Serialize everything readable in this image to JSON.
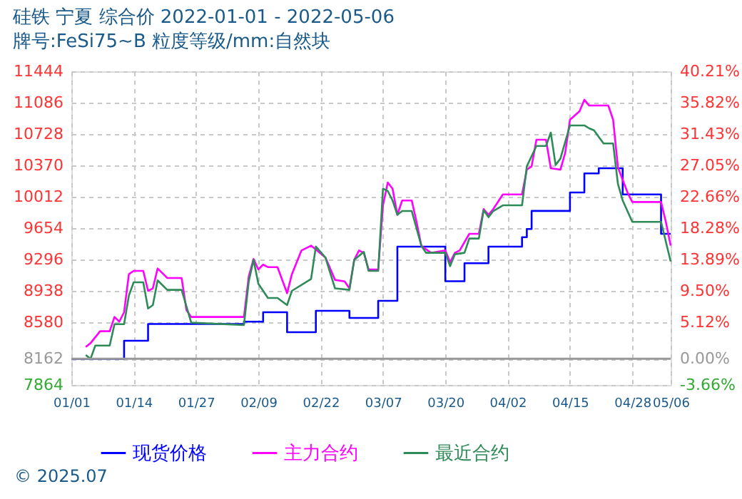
{
  "chart_data": {
    "type": "line",
    "title": "硅铁 宁夏 综合价 2022-01-01 - 2022-05-06",
    "subtitle": "牌号:FeSi75~B 粒度等级/mm:自然块",
    "xlim": [
      "2022-01-01",
      "2022-05-06"
    ],
    "xticks": [
      {
        "value": "2022-01-01",
        "label": "01/01"
      },
      {
        "value": "2022-01-14",
        "label": "01/14"
      },
      {
        "value": "2022-01-27",
        "label": "01/27"
      },
      {
        "value": "2022-02-09",
        "label": "02/09"
      },
      {
        "value": "2022-02-22",
        "label": "02/22"
      },
      {
        "value": "2022-03-07",
        "label": "03/07"
      },
      {
        "value": "2022-03-20",
        "label": "03/20"
      },
      {
        "value": "2022-04-02",
        "label": "04/02"
      },
      {
        "value": "2022-04-15",
        "label": "04/15"
      },
      {
        "value": "2022-04-28",
        "label": "04/28"
      },
      {
        "value": "2022-05-06",
        "label": "05/06"
      }
    ],
    "ylim": [
      7864,
      11444
    ],
    "yticks": [
      7864,
      8162,
      8580,
      8938,
      9296,
      9654,
      10012,
      10370,
      10728,
      11086,
      11444
    ],
    "y2lim": [
      -3.66,
      40.21
    ],
    "y2ticks": [
      {
        "value": -3.66,
        "label": "-3.66%"
      },
      {
        "value": 0,
        "label": "0.00%"
      },
      {
        "value": 5.12,
        "label": "5.12%"
      },
      {
        "value": 9.5,
        "label": "9.50%"
      },
      {
        "value": 13.89,
        "label": "13.89%"
      },
      {
        "value": 18.28,
        "label": "18.28%"
      },
      {
        "value": 22.66,
        "label": "22.66%"
      },
      {
        "value": 27.05,
        "label": "27.05%"
      },
      {
        "value": 31.43,
        "label": "31.43%"
      },
      {
        "value": 35.82,
        "label": "35.82%"
      },
      {
        "value": 40.21,
        "label": "40.21%"
      }
    ],
    "grid": true,
    "legend": "bottom",
    "marker": "none",
    "line_style": "solid",
    "ref_lines": [
      {
        "axis": "y2",
        "value": 0,
        "color": "#999999"
      }
    ],
    "annotations": [
      "© 2025.07"
    ],
    "series": [
      {
        "name": "现货价格",
        "type": "step",
        "color": "#0000ff",
        "x": [
          "2022-01-01",
          "2022-01-12",
          "2022-01-17",
          "2022-02-06",
          "2022-02-10",
          "2022-02-15",
          "2022-02-21",
          "2022-02-28",
          "2022-03-06",
          "2022-03-10",
          "2022-03-20",
          "2022-03-24",
          "2022-03-29",
          "2022-04-05",
          "2022-04-06",
          "2022-04-07",
          "2022-04-15",
          "2022-04-18",
          "2022-04-21",
          "2022-04-26",
          "2022-05-04",
          "2022-05-06"
        ],
        "values": [
          8162,
          8369,
          8560,
          8586,
          8694,
          8466,
          8710,
          8629,
          8824,
          9443,
          9048,
          9253,
          9443,
          9550,
          9644,
          9850,
          10061,
          10278,
          10337,
          10039,
          9589,
          9589
        ]
      },
      {
        "name": "主力合约",
        "type": "line",
        "color": "#ff00ff",
        "x": [
          "2022-01-04",
          "2022-01-05",
          "2022-01-07",
          "2022-01-09",
          "2022-01-10",
          "2022-01-11",
          "2022-01-12",
          "2022-01-13",
          "2022-01-14",
          "2022-01-16",
          "2022-01-17",
          "2022-01-18",
          "2022-01-19",
          "2022-01-21",
          "2022-01-24",
          "2022-01-25",
          "2022-01-26",
          "2022-02-06",
          "2022-02-07",
          "2022-02-08",
          "2022-02-09",
          "2022-02-10",
          "2022-02-11",
          "2022-02-13",
          "2022-02-15",
          "2022-02-16",
          "2022-02-18",
          "2022-02-20",
          "2022-02-23",
          "2022-02-25",
          "2022-02-27",
          "2022-02-28",
          "2022-03-01",
          "2022-03-02",
          "2022-03-03",
          "2022-03-04",
          "2022-03-06",
          "2022-03-07",
          "2022-03-08",
          "2022-03-09",
          "2022-03-10",
          "2022-03-11",
          "2022-03-13",
          "2022-03-14",
          "2022-03-15",
          "2022-03-17",
          "2022-03-20",
          "2022-03-21",
          "2022-03-22",
          "2022-03-23",
          "2022-03-25",
          "2022-03-27",
          "2022-03-28",
          "2022-03-29",
          "2022-03-30",
          "2022-04-01",
          "2022-04-05",
          "2022-04-06",
          "2022-04-07",
          "2022-04-08",
          "2022-04-10",
          "2022-04-11",
          "2022-04-13",
          "2022-04-14",
          "2022-04-15",
          "2022-04-17",
          "2022-04-18",
          "2022-04-19",
          "2022-04-23",
          "2022-04-24",
          "2022-04-25",
          "2022-04-27",
          "2022-04-28",
          "2022-05-04",
          "2022-05-05",
          "2022-05-06"
        ],
        "values": [
          8298,
          8341,
          8477,
          8477,
          8640,
          8586,
          8694,
          9128,
          9166,
          9166,
          8938,
          8966,
          9193,
          9085,
          9085,
          8721,
          8640,
          8640,
          9101,
          9302,
          9182,
          9237,
          9209,
          9209,
          8911,
          9128,
          9399,
          9454,
          9318,
          9063,
          9046,
          8966,
          9291,
          9399,
          9372,
          9182,
          9182,
          9915,
          10175,
          10104,
          9806,
          9969,
          9969,
          9725,
          9453,
          9372,
          9399,
          9264,
          9372,
          9399,
          9589,
          9589,
          9871,
          9806,
          9871,
          10039,
          10039,
          10321,
          10359,
          10663,
          10663,
          10337,
          10321,
          10511,
          10891,
          10988,
          11119,
          11053,
          11053,
          10891,
          10348,
          10061,
          9952,
          9952,
          9725,
          9454
        ]
      },
      {
        "name": "最近合约",
        "type": "line",
        "color": "#2e8b57",
        "x": [
          "2022-01-04",
          "2022-01-05",
          "2022-01-06",
          "2022-01-09",
          "2022-01-10",
          "2022-01-12",
          "2022-01-13",
          "2022-01-14",
          "2022-01-16",
          "2022-01-17",
          "2022-01-18",
          "2022-01-19",
          "2022-01-21",
          "2022-01-24",
          "2022-01-26",
          "2022-02-06",
          "2022-02-07",
          "2022-02-08",
          "2022-02-09",
          "2022-02-11",
          "2022-02-13",
          "2022-02-15",
          "2022-02-16",
          "2022-02-20",
          "2022-02-21",
          "2022-02-23",
          "2022-02-25",
          "2022-02-28",
          "2022-03-01",
          "2022-03-03",
          "2022-03-04",
          "2022-03-06",
          "2022-03-07",
          "2022-03-08",
          "2022-03-09",
          "2022-03-10",
          "2022-03-11",
          "2022-03-13",
          "2022-03-15",
          "2022-03-16",
          "2022-03-20",
          "2022-03-21",
          "2022-03-22",
          "2022-03-24",
          "2022-03-25",
          "2022-03-27",
          "2022-03-28",
          "2022-03-29",
          "2022-03-30",
          "2022-04-01",
          "2022-04-05",
          "2022-04-06",
          "2022-04-08",
          "2022-04-10",
          "2022-04-11",
          "2022-04-12",
          "2022-04-13",
          "2022-04-15",
          "2022-04-18",
          "2022-04-19",
          "2022-04-20",
          "2022-04-22",
          "2022-04-24",
          "2022-04-25",
          "2022-04-26",
          "2022-04-28",
          "2022-05-04",
          "2022-05-06"
        ],
        "values": [
          8206,
          8162,
          8314,
          8314,
          8558,
          8558,
          8884,
          9036,
          9036,
          8737,
          8775,
          9058,
          8949,
          8949,
          8575,
          8548,
          9046,
          9291,
          9020,
          8857,
          8857,
          8775,
          8938,
          9074,
          9443,
          9318,
          8966,
          8949,
          9291,
          9383,
          9166,
          9166,
          10104,
          10077,
          9969,
          9806,
          9849,
          9849,
          9453,
          9372,
          9372,
          9220,
          9356,
          9372,
          9535,
          9535,
          9860,
          9779,
          9849,
          9914,
          9914,
          10359,
          10592,
          10592,
          10744,
          10375,
          10446,
          10826,
          10826,
          10793,
          10771,
          10620,
          10620,
          10159,
          9969,
          9725,
          9725,
          9274
        ]
      }
    ]
  }
}
